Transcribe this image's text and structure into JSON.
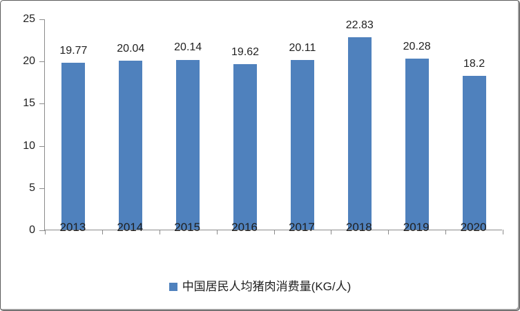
{
  "chart_data": {
    "type": "bar",
    "title": "",
    "xlabel": "",
    "ylabel": "",
    "categories": [
      "2013",
      "2014",
      "2015",
      "2016",
      "2017",
      "2018",
      "2019",
      "2020"
    ],
    "values": [
      19.77,
      20.04,
      20.14,
      19.62,
      20.11,
      22.83,
      20.28,
      18.2
    ],
    "value_labels": [
      "19.77",
      "20.04",
      "20.14",
      "19.62",
      "20.11",
      "22.83",
      "20.28",
      "18.2"
    ],
    "ylim": [
      0,
      25
    ],
    "yticks": [
      0,
      5,
      10,
      15,
      20,
      25
    ],
    "grid": false,
    "legend": "中国居民人均猪肉消费量(KG/人)",
    "legend_position": "bottom",
    "colors": {
      "bar": "#4f81bd",
      "axis": "#8a8a8a",
      "text": "#1f1f1f",
      "frame_border": "#5a5a5a",
      "background": "#ffffff"
    }
  }
}
